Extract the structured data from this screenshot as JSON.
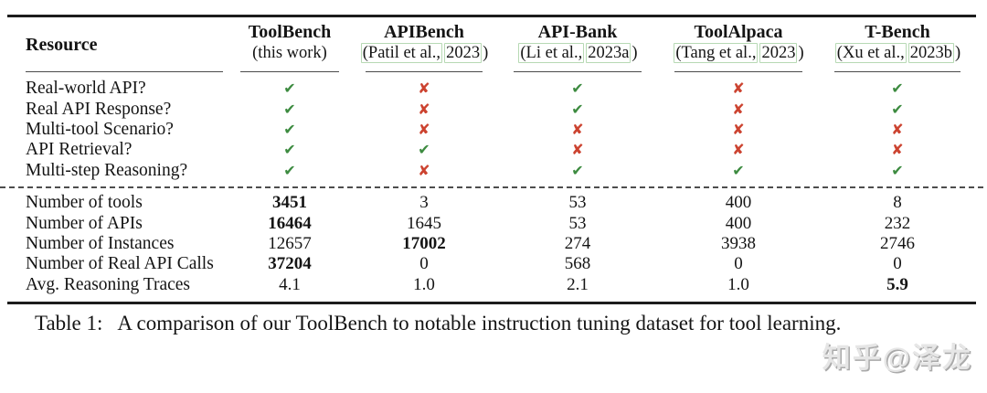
{
  "colors": {
    "check_green": "#3d8b40",
    "cross_red": "#cc4330",
    "citation_box_border": "#b7d9b4",
    "rule_black": "#1c1c1c",
    "watermark_gray": "#e6e6e6"
  },
  "caption": {
    "label": "Table 1:",
    "text": "A comparison of our ToolBench to notable instruction tuning dataset for tool learning."
  },
  "watermark": {
    "text": "知乎@泽龙"
  },
  "table": {
    "corner_header": "Resource",
    "marks": {
      "check": "✔",
      "cross": "✘"
    },
    "columns": [
      {
        "name": "ToolBench",
        "subtitle_plain": "(this work)"
      },
      {
        "name": "APIBench",
        "cite_author": "(Patil et al.,",
        "cite_year": "2023",
        "close": ")"
      },
      {
        "name": "API-Bank",
        "cite_author": "(Li et al.,",
        "cite_year": "2023a",
        "close": ")"
      },
      {
        "name": "ToolAlpaca",
        "cite_author": "(Tang et al.,",
        "cite_year": "2023",
        "close": ")"
      },
      {
        "name": "T-Bench",
        "cite_author": "(Xu et al.,",
        "cite_year": "2023b",
        "close": ")"
      }
    ],
    "feature_rows": [
      {
        "label": "Real-world API?",
        "values": [
          "check",
          "cross",
          "check",
          "cross",
          "check"
        ]
      },
      {
        "label": "Real API Response?",
        "values": [
          "check",
          "cross",
          "check",
          "cross",
          "check"
        ]
      },
      {
        "label": "Multi-tool Scenario?",
        "values": [
          "check",
          "cross",
          "cross",
          "cross",
          "cross"
        ]
      },
      {
        "label": "API Retrieval?",
        "values": [
          "check",
          "check",
          "cross",
          "cross",
          "cross"
        ]
      },
      {
        "label": "Multi-step Reasoning?",
        "values": [
          "check",
          "cross",
          "check",
          "check",
          "check"
        ]
      }
    ],
    "stat_rows": [
      {
        "label": "Number of tools",
        "values": [
          "3451",
          "3",
          "53",
          "400",
          "8"
        ],
        "bold": [
          true,
          false,
          false,
          false,
          false
        ]
      },
      {
        "label": "Number of APIs",
        "values": [
          "16464",
          "1645",
          "53",
          "400",
          "232"
        ],
        "bold": [
          true,
          false,
          false,
          false,
          false
        ]
      },
      {
        "label": "Number of Instances",
        "values": [
          "12657",
          "17002",
          "274",
          "3938",
          "2746"
        ],
        "bold": [
          false,
          true,
          false,
          false,
          false
        ]
      },
      {
        "label": "Number of Real API Calls",
        "values": [
          "37204",
          "0",
          "568",
          "0",
          "0"
        ],
        "bold": [
          true,
          false,
          false,
          false,
          false
        ]
      },
      {
        "label": "Avg. Reasoning Traces",
        "values": [
          "4.1",
          "1.0",
          "2.1",
          "1.0",
          "5.9"
        ],
        "bold": [
          false,
          false,
          false,
          false,
          true
        ]
      }
    ]
  }
}
